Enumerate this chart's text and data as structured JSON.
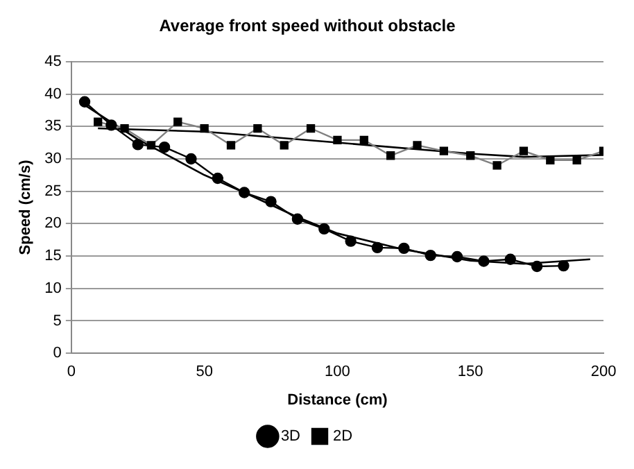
{
  "chart_data": {
    "type": "line",
    "title": "Average front speed without obstacle",
    "xlabel": "Distance (cm)",
    "ylabel": "Speed (cm/s)",
    "xlim": [
      0,
      200
    ],
    "xticks": [
      0,
      50,
      100,
      150,
      200
    ],
    "ylim": [
      0,
      45
    ],
    "yticks": [
      0,
      5,
      10,
      15,
      20,
      25,
      30,
      35,
      40,
      45
    ],
    "grid": "y",
    "legend": "bottom",
    "series": [
      {
        "name": "3D",
        "color": "#000000",
        "marker": "circle",
        "x": [
          5,
          15,
          25,
          35,
          45,
          55,
          65,
          75,
          85,
          95,
          105,
          115,
          125,
          135,
          145,
          155,
          165,
          175,
          185
        ],
        "values": [
          38.8,
          35.2,
          32.2,
          31.8,
          30.0,
          27.0,
          24.8,
          23.4,
          20.7,
          19.2,
          17.3,
          16.3,
          16.2,
          15.1,
          14.9,
          14.2,
          14.5,
          13.4,
          13.5
        ]
      },
      {
        "name": "2D",
        "color": "#808080",
        "marker": "square",
        "x": [
          10,
          20,
          30,
          40,
          50,
          60,
          70,
          80,
          90,
          100,
          110,
          120,
          130,
          140,
          150,
          160,
          170,
          180,
          190,
          200
        ],
        "values": [
          35.7,
          34.7,
          32.1,
          35.7,
          34.7,
          32.1,
          34.7,
          32.1,
          34.7,
          32.9,
          32.9,
          30.5,
          32.1,
          31.2,
          30.5,
          29.0,
          31.2,
          29.8,
          29.8,
          31.2
        ]
      },
      {
        "type": "line",
        "color": "#000000",
        "marker": "none",
        "x": [
          5,
          25,
          50,
          65,
          85,
          100,
          125,
          150,
          170,
          195
        ],
        "values": [
          38.3,
          33.0,
          27.5,
          24.8,
          21.0,
          18.5,
          16.0,
          14.3,
          13.8,
          14.5
        ]
      },
      {
        "type": "line",
        "color": "#000000",
        "marker": "none",
        "x": [
          10,
          50,
          100,
          150,
          170,
          200
        ],
        "values": [
          34.7,
          34.2,
          32.5,
          30.8,
          30.3,
          30.6
        ]
      }
    ]
  }
}
